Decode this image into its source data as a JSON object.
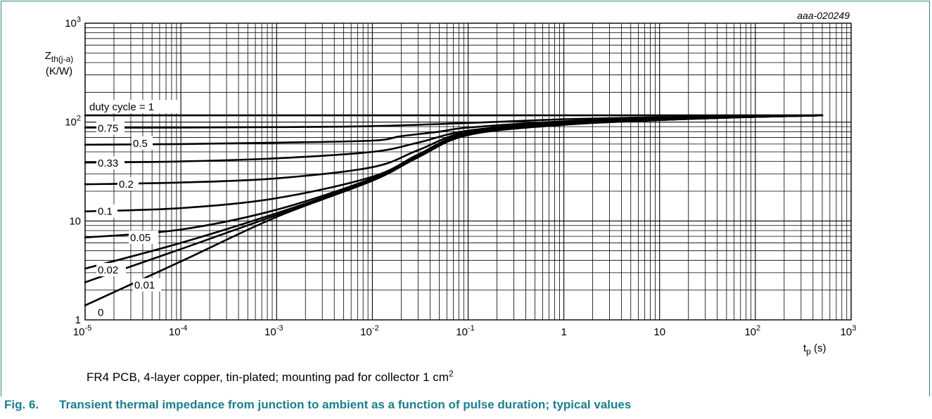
{
  "figure": {
    "id_code": "aaa-020249",
    "note": "FR4 PCB, 4-layer copper, tin-plated; mounting pad for collector 1 cm",
    "note_sup": "2",
    "caption_number": "Fig. 6.",
    "caption_text": "Transient thermal impedance from junction to ambient as a function of pulse duration; typical values"
  },
  "chart_data": {
    "type": "line",
    "xscale": "log",
    "yscale": "log",
    "xlim": [
      1e-05,
      1000
    ],
    "ylim": [
      1,
      1000
    ],
    "grid": true,
    "xlabel": {
      "main": "t",
      "sub": "p",
      "unit": " (s)"
    },
    "ylabel": {
      "main": "Z",
      "sub": "th(j-a)",
      "unit": "(K/W)"
    },
    "xticks": [
      {
        "base": "10",
        "exp": "-5"
      },
      {
        "base": "10",
        "exp": "-4"
      },
      {
        "base": "10",
        "exp": "-3"
      },
      {
        "base": "10",
        "exp": "-2"
      },
      {
        "base": "10",
        "exp": "-1"
      },
      {
        "base": "1",
        "exp": ""
      },
      {
        "base": "10",
        "exp": ""
      },
      {
        "base": "10",
        "exp": "2"
      },
      {
        "base": "10",
        "exp": "3"
      }
    ],
    "yticks": [
      {
        "base": "1",
        "exp": ""
      },
      {
        "base": "10",
        "exp": ""
      },
      {
        "base": "10",
        "exp": "2"
      },
      {
        "base": "10",
        "exp": "3"
      }
    ],
    "series": [
      {
        "name": "duty cycle = 1",
        "x": [
          1e-05,
          0.001,
          0.1,
          1,
          10,
          100,
          500
        ],
        "y": [
          117,
          117,
          117,
          117,
          117,
          117,
          117
        ]
      },
      {
        "name": "0.75",
        "x": [
          1e-05,
          0.0001,
          0.001,
          0.01,
          0.1,
          1,
          10,
          100,
          500
        ],
        "y": [
          88,
          88,
          89,
          91,
          98,
          107,
          112,
          115,
          117
        ]
      },
      {
        "name": "0.5",
        "x": [
          1e-05,
          0.0001,
          0.001,
          0.01,
          0.02,
          0.05,
          0.1,
          1,
          10,
          100,
          500
        ],
        "y": [
          59,
          60,
          62,
          65,
          72,
          80,
          88,
          102,
          109,
          114,
          117
        ]
      },
      {
        "name": "0.33",
        "x": [
          1e-05,
          0.0001,
          0.001,
          0.01,
          0.03,
          0.1,
          1,
          10,
          100,
          500
        ],
        "y": [
          39,
          40,
          43,
          50,
          62,
          82,
          100,
          108,
          114,
          117
        ]
      },
      {
        "name": "0.2",
        "x": [
          1e-05,
          0.0001,
          0.001,
          0.01,
          0.03,
          0.1,
          1,
          10,
          100,
          500
        ],
        "y": [
          23.5,
          24.5,
          27,
          35,
          52,
          80,
          98,
          107,
          113,
          117
        ]
      },
      {
        "name": "0.1",
        "x": [
          1e-05,
          0.0001,
          0.001,
          0.01,
          0.03,
          0.1,
          1,
          10,
          100,
          500
        ],
        "y": [
          12.5,
          13.5,
          17,
          28,
          47,
          78,
          96,
          106,
          113,
          117
        ]
      },
      {
        "name": "0.05",
        "x": [
          1e-05,
          0.0001,
          0.001,
          0.01,
          0.03,
          0.1,
          1,
          10,
          100,
          500
        ],
        "y": [
          6.8,
          8.2,
          13,
          27,
          46,
          77,
          95,
          106,
          113,
          117
        ]
      },
      {
        "name": "0.02",
        "x": [
          1e-05,
          0.0001,
          0.001,
          0.01,
          0.03,
          0.1,
          1,
          10,
          100,
          500
        ],
        "y": [
          3.3,
          6,
          12,
          26,
          45,
          76,
          95,
          105,
          113,
          117
        ]
      },
      {
        "name": "0.01",
        "x": [
          1e-05,
          0.0001,
          0.001,
          0.01,
          0.03,
          0.1,
          1,
          10,
          100,
          500
        ],
        "y": [
          2.4,
          5.2,
          11.5,
          26,
          45,
          75,
          94,
          105,
          113,
          117
        ]
      },
      {
        "name": "0",
        "x": [
          1e-05,
          0.0001,
          0.001,
          0.01,
          0.03,
          0.1,
          1,
          10,
          100,
          500
        ],
        "y": [
          1.4,
          3.9,
          11,
          25.5,
          44,
          74,
          94,
          105,
          113,
          117
        ]
      }
    ]
  }
}
